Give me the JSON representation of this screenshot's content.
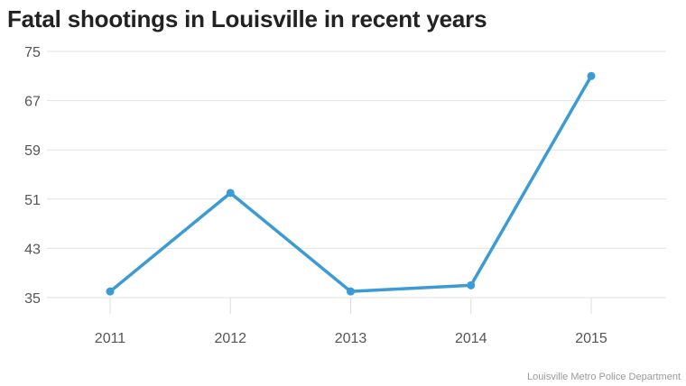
{
  "chart_data": {
    "type": "line",
    "title": "Fatal shootings in Louisville in recent years",
    "xlabel": "",
    "ylabel": "",
    "categories": [
      "2011",
      "2012",
      "2013",
      "2014",
      "2015"
    ],
    "series": [
      {
        "values": [
          36,
          52,
          36,
          37,
          71
        ]
      }
    ],
    "ylim": [
      35,
      75
    ],
    "yticks": [
      "75",
      "67",
      "59",
      "51",
      "43",
      "35"
    ],
    "grid": true,
    "line_color": "#3b9bd4",
    "grid_color": "#e2e2e2",
    "source": "Louisville Metro Police Department"
  }
}
